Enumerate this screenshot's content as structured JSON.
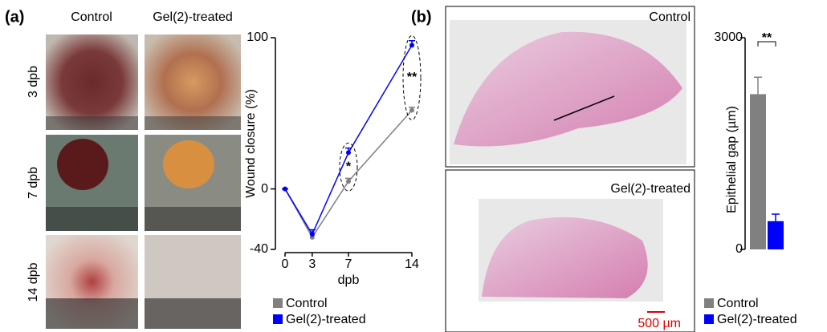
{
  "panel_a": {
    "label": "(a)",
    "column_labels": [
      "Control",
      "Gel(2)-treated"
    ],
    "row_labels": [
      "3 dpb",
      "7 dpb",
      "14 dpb"
    ]
  },
  "panel_b": {
    "label": "(b)",
    "image_labels": [
      "Control",
      "Gel(2)-treated"
    ],
    "scale_bar": "500 µm"
  },
  "chart_data": [
    {
      "type": "line",
      "x_label": "dpb",
      "y_label": "Wound closure (%)",
      "x": [
        0,
        3,
        7,
        14
      ],
      "xlim": [
        0,
        14
      ],
      "xticks": [
        0,
        3,
        7,
        14
      ],
      "ylim": [
        -40,
        100
      ],
      "yticks": [
        -40,
        0,
        100
      ],
      "series": [
        {
          "name": "Control",
          "color": "#808080",
          "values": [
            0,
            -32,
            5,
            52
          ],
          "errors": [
            0,
            3,
            2,
            2
          ]
        },
        {
          "name": "Gel(2)-treated",
          "color": "#0000ff",
          "values": [
            0,
            -30,
            24,
            95
          ],
          "errors": [
            0,
            3,
            3,
            3
          ]
        }
      ],
      "annotations": [
        {
          "x": 7,
          "text": "*"
        },
        {
          "x": 14,
          "text": "**"
        }
      ]
    },
    {
      "type": "bar",
      "y_label": "Epithelial gap (µm)",
      "categories": [
        null,
        null
      ],
      "ylim": [
        0,
        3000
      ],
      "yticks": [
        0,
        3000
      ],
      "series": [
        {
          "name": "Control",
          "color": "#808080",
          "values": [
            2200,
            null
          ],
          "errors": [
            240,
            null
          ]
        },
        {
          "name": "Gel(2)-treated",
          "color": "#0000ff",
          "values": [
            null,
            400
          ],
          "errors": [
            null,
            100
          ]
        }
      ],
      "annotations": [
        {
          "text": "**"
        }
      ]
    }
  ]
}
